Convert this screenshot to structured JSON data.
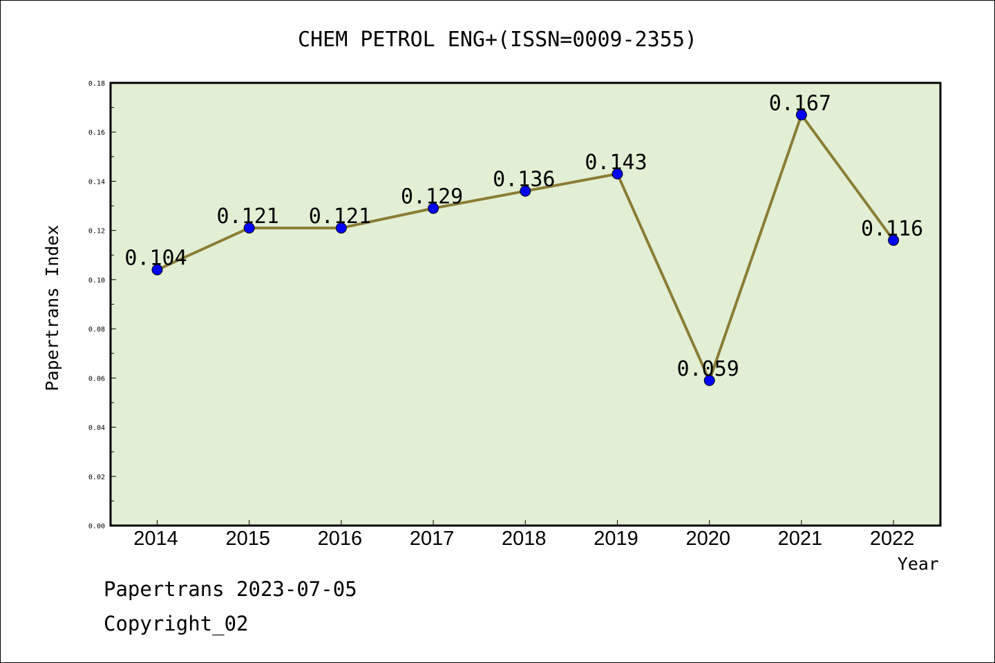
{
  "chart_data": {
    "type": "line",
    "title": "CHEM PETROL ENG+(ISSN=0009-2355)",
    "xlabel": "Year",
    "ylabel": "Papertrans Index",
    "categories": [
      "2014",
      "2015",
      "2016",
      "2017",
      "2018",
      "2019",
      "2020",
      "2021",
      "2022"
    ],
    "values": [
      0.104,
      0.121,
      0.121,
      0.129,
      0.136,
      0.143,
      0.059,
      0.167,
      0.116
    ],
    "value_labels": [
      "0.104",
      "0.121",
      "0.121",
      "0.129",
      "0.136",
      "0.143",
      "0.059",
      "0.167",
      "0.116"
    ],
    "ylim": [
      0,
      0.18
    ],
    "yticks": [
      "0.00",
      "0.02",
      "0.04",
      "0.06",
      "0.08",
      "0.10",
      "0.12",
      "0.14",
      "0.16",
      "0.18"
    ],
    "grid": false,
    "colors": {
      "plot_background": "#e2efd4",
      "line": "#8b7d36",
      "marker": "#0000ff"
    }
  },
  "footer": {
    "date_line": "Papertrans 2023-07-05",
    "copyright": "Copyright_02"
  }
}
